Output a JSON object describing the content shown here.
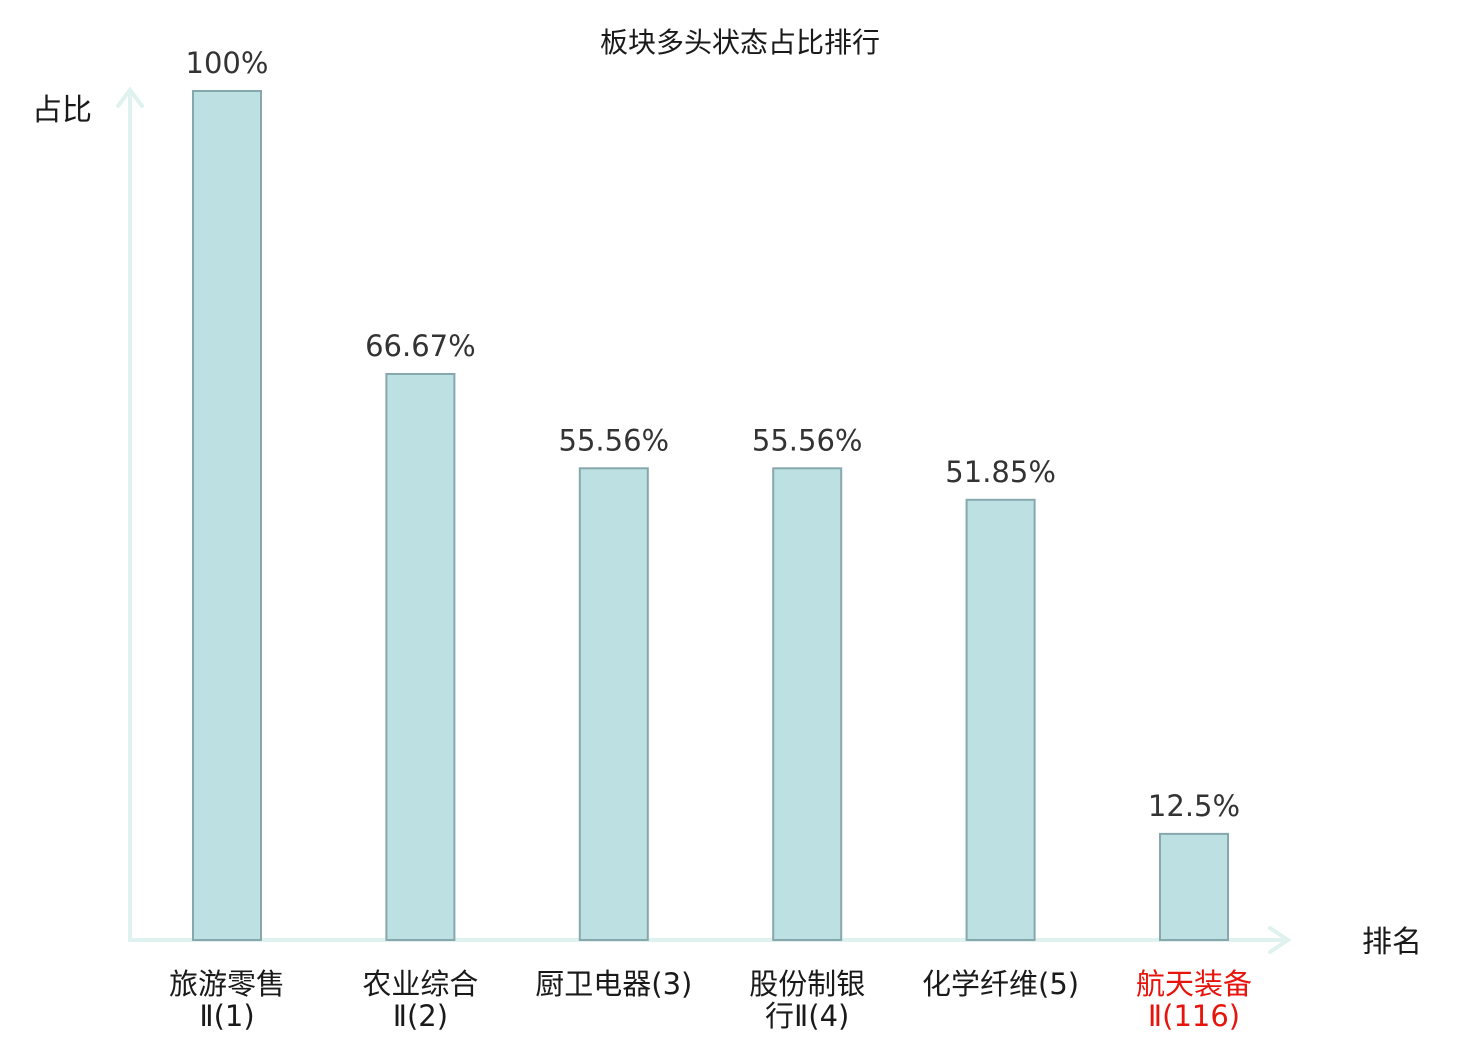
{
  "chart_data": {
    "type": "bar",
    "title": "板块多头状态占比排行",
    "ylabel": "占比",
    "xlabel": "排名",
    "ylim": [
      0,
      100
    ],
    "categories": [
      {
        "lines": [
          "旅游零售",
          "Ⅱ(1)"
        ],
        "highlight": false
      },
      {
        "lines": [
          "农业综合",
          "Ⅱ(2)"
        ],
        "highlight": false
      },
      {
        "lines": [
          "厨卫电器(3)"
        ],
        "highlight": false
      },
      {
        "lines": [
          "股份制银",
          "行Ⅱ(4)"
        ],
        "highlight": false
      },
      {
        "lines": [
          "化学纤维(5)"
        ],
        "highlight": false
      },
      {
        "lines": [
          "航天装备",
          "Ⅱ(116)"
        ],
        "highlight": true
      }
    ],
    "values": [
      100,
      66.67,
      55.56,
      55.56,
      51.85,
      12.5
    ],
    "value_labels": [
      "100%",
      "66.67%",
      "55.56%",
      "55.56%",
      "51.85%",
      "12.5%"
    ],
    "colors": {
      "bar_fill": "#bde0e3",
      "bar_stroke": "#86a8ad",
      "axis": "#dff2ef",
      "highlight_text": "#e8140c",
      "normal_text": "#1a1a1a"
    },
    "grid": false
  }
}
